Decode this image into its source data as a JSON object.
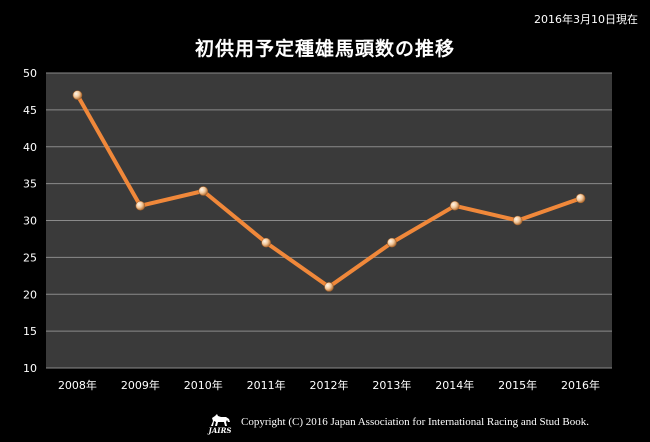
{
  "date_note": "2016年3月10日現在",
  "title": "初供用予定種雄馬頭数の推移",
  "footer": {
    "logo_text": "JAIRS",
    "copyright": "Copyright (C) 2016 Japan Association for International Racing and Stud Book."
  },
  "colors": {
    "page_background": "#000000",
    "plot_background": "#3a3a3a",
    "gridline": "#8a8a8a",
    "line": "#f0883a",
    "marker": "#f2c79a"
  },
  "chart_data": {
    "type": "line",
    "title": "初供用予定種雄馬頭数の推移",
    "categories": [
      "2008年",
      "2009年",
      "2010年",
      "2011年",
      "2012年",
      "2013年",
      "2014年",
      "2015年",
      "2016年"
    ],
    "values": [
      47,
      32,
      34,
      27,
      21,
      27,
      32,
      30,
      33
    ],
    "ylim": [
      10,
      50
    ],
    "yticks": [
      10,
      15,
      20,
      25,
      30,
      35,
      40,
      45,
      50
    ],
    "grid": true,
    "legend": "none"
  }
}
